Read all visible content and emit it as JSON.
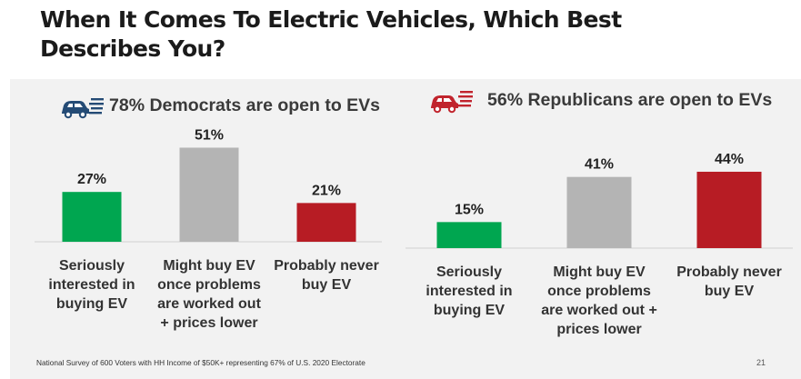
{
  "slide": {
    "title_line1": "When It Comes To Electric Vehicles, Which Best",
    "title_line2": "Describes You?",
    "footnote": "National Survey of 600 Voters with HH Income of $50K+ representing 67% of U.S. 2020 Electorate",
    "page_number": "21"
  },
  "icons": {
    "democrat_icon": "democrat-car-icon",
    "republican_icon": "republican-car-icon"
  },
  "colors": {
    "panel_bg": "#f2f2f2",
    "green": "#00a650",
    "gray": "#b4b4b4",
    "red": "#b71c24",
    "democrat_blue": "#244b75",
    "republican_red": "#c1242d"
  },
  "chart_data": [
    {
      "type": "bar",
      "title": "78% Democrats are open to EVs",
      "categories": [
        [
          "Seriously",
          "interested in",
          "buying EV"
        ],
        [
          "Might buy EV",
          "once problems",
          "are worked out",
          "+ prices lower"
        ],
        [
          "Probably never",
          "buy EV"
        ]
      ],
      "values": [
        27,
        51,
        21
      ],
      "value_labels": [
        "27%",
        "51%",
        "21%"
      ],
      "colors": [
        "#00a650",
        "#b4b4b4",
        "#b71c24"
      ],
      "ylim": [
        0,
        100
      ],
      "grid": false
    },
    {
      "type": "bar",
      "title": "56% Republicans are open to EVs",
      "categories": [
        [
          "Seriously",
          "interested in",
          "buying EV"
        ],
        [
          "Might buy EV",
          "once problems",
          "are worked out +",
          "prices lower"
        ],
        [
          "Probably never",
          "buy EV"
        ]
      ],
      "values": [
        15,
        41,
        44
      ],
      "value_labels": [
        "15%",
        "41%",
        "44%"
      ],
      "colors": [
        "#00a650",
        "#b4b4b4",
        "#b71c24"
      ],
      "ylim": [
        0,
        100
      ],
      "grid": false
    }
  ]
}
